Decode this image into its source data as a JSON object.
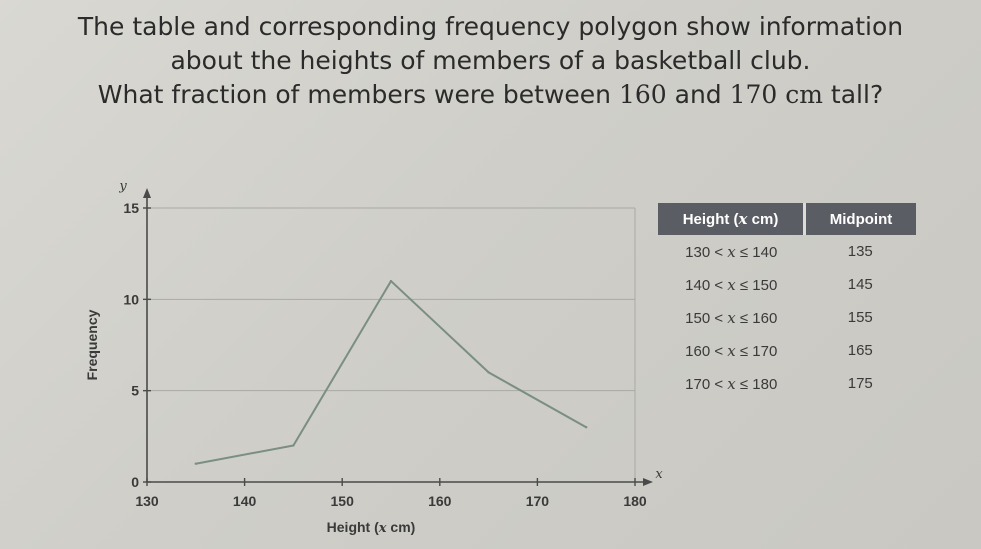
{
  "question": {
    "line1": "The table and corresponding frequency polygon show information",
    "line2": "about the heights of members of a basketball club.",
    "line3_pre": "What fraction of members were between ",
    "line3_a": "160",
    "line3_mid": " and ",
    "line3_b": "170 cm",
    "line3_post": " tall?"
  },
  "table": {
    "headers": [
      "Height (x cm)",
      "Midpoint"
    ],
    "rows": [
      {
        "interval": "130 < x ≤ 140",
        "midpoint": "135"
      },
      {
        "interval": "140 < x ≤ 150",
        "midpoint": "145"
      },
      {
        "interval": "150 < x ≤ 160",
        "midpoint": "155"
      },
      {
        "interval": "160 < x ≤ 170",
        "midpoint": "165"
      },
      {
        "interval": "170 < x ≤ 180",
        "midpoint": "175"
      }
    ]
  },
  "chart_data": {
    "type": "line",
    "xlabel": "Height (x cm)",
    "ylabel": "Frequency",
    "x_axis_var": "x",
    "y_axis_var": "y",
    "xlim": [
      130,
      180
    ],
    "ylim": [
      0,
      15
    ],
    "x_ticks": [
      130,
      140,
      150,
      160,
      170,
      180
    ],
    "y_ticks": [
      0,
      5,
      10,
      15
    ],
    "grid": "horizontal",
    "series": [
      {
        "x": [
          135,
          145,
          155,
          165,
          175
        ],
        "y": [
          1,
          2,
          11,
          6,
          3
        ]
      }
    ],
    "colors": {
      "line": "#7a8f80",
      "grid": "#aaaaa4",
      "axis": "#4a4a4a"
    }
  }
}
